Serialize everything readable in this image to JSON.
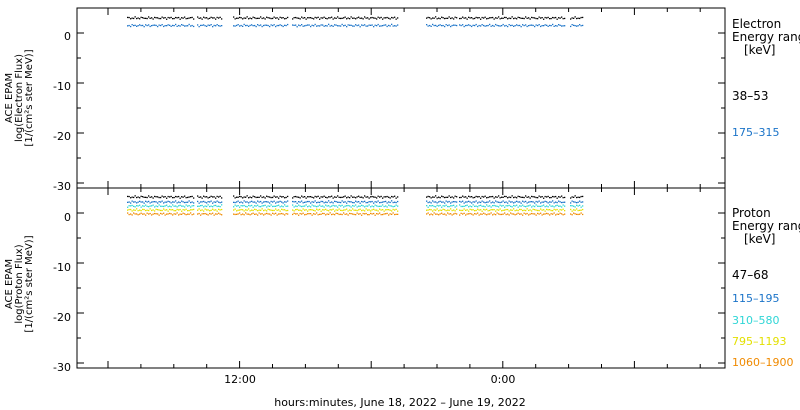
{
  "chart_data": [
    {
      "type": "scatter",
      "ylabel_lines": [
        "ACE EPAM",
        "log(Electron Flux)",
        "[1/(cm²s ster MeV)]"
      ],
      "ylim": [
        -31,
        5
      ],
      "yticks": [
        0,
        -10,
        -20,
        -30
      ],
      "legend_title_lines": [
        "Electron",
        "Energy range",
        "[keV]"
      ],
      "series": [
        {
          "name": "38–53",
          "color": "#000000",
          "level": 3.0
        },
        {
          "name": "175–315",
          "color": "#1a73c8",
          "level": 1.5
        }
      ]
    },
    {
      "type": "scatter",
      "ylabel_lines": [
        "ACE EPAM",
        "log(Proton Flux)",
        "[1/(cm²s ster MeV)]"
      ],
      "ylim": [
        -31,
        5
      ],
      "yticks": [
        0,
        -10,
        -20,
        -30
      ],
      "legend_title_lines": [
        "Proton",
        "Energy range",
        "[keV]"
      ],
      "series": [
        {
          "name": "47–68",
          "color": "#000000",
          "level": 3.2
        },
        {
          "name": "115–195",
          "color": "#1a73c8",
          "level": 2.2
        },
        {
          "name": "310–580",
          "color": "#2fd6d6",
          "level": 1.4
        },
        {
          "name": "795–1193",
          "color": "#e3e000",
          "level": 0.6
        },
        {
          "name": "1060–1900",
          "color": "#f08a00",
          "level": -0.2
        }
      ]
    }
  ],
  "x_axis": {
    "tick_labels": [
      "12:00",
      "0:00"
    ],
    "title": "hours:minutes, June 18, 2022 – June 19, 2022"
  }
}
